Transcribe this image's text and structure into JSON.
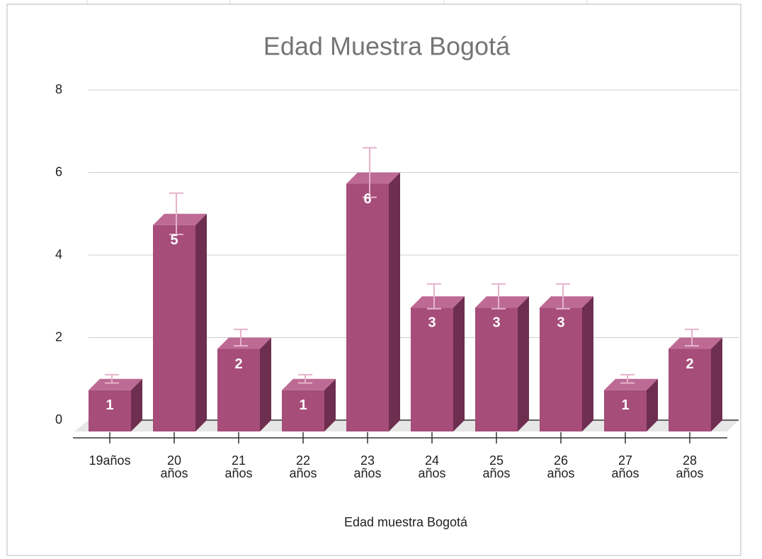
{
  "chart_data": {
    "type": "bar3d",
    "title": "Edad Muestra Bogotá",
    "x_label": "Edad muestra Bogotá",
    "categories": [
      "19años",
      "20 años",
      "21 años",
      "22 años",
      "23 años",
      "24 años",
      "25 años",
      "26 años",
      "27 años",
      "28 años"
    ],
    "values": [
      1,
      5,
      2,
      1,
      6,
      3,
      3,
      3,
      1,
      2
    ],
    "errors": [
      0.1,
      0.5,
      0.2,
      0.1,
      0.6,
      0.3,
      0.3,
      0.3,
      0.1,
      0.2
    ],
    "color": "#a64d79",
    "error_color": "#e6b3cc",
    "ylim": [
      0,
      8
    ],
    "yticks": [
      0,
      2,
      4,
      6,
      8
    ],
    "grid": true
  }
}
